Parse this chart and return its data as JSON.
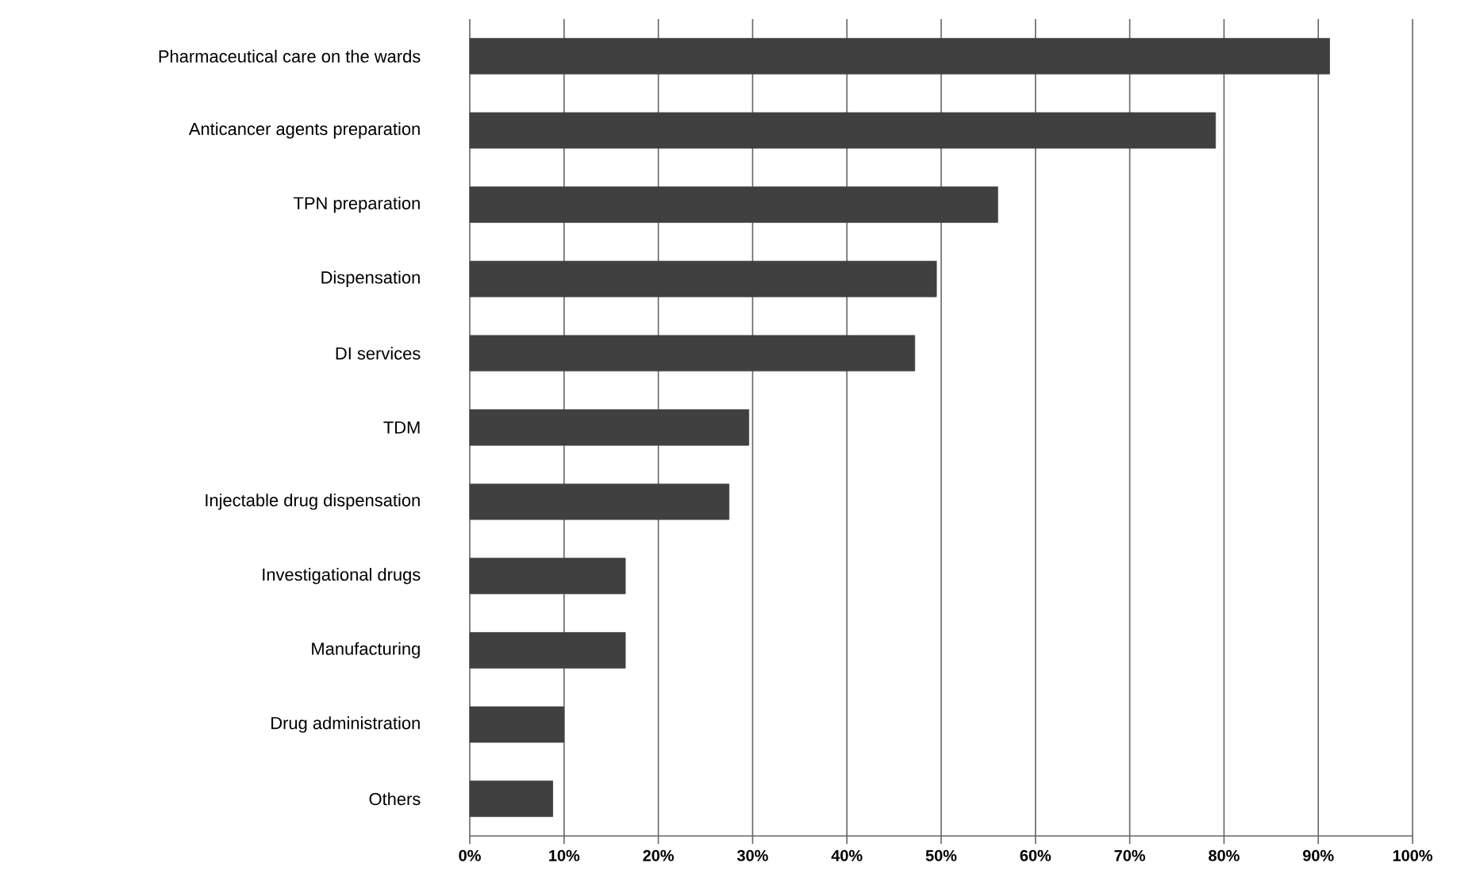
{
  "chart_data": {
    "type": "bar",
    "orientation": "horizontal",
    "categories": [
      "Pharmaceutical care on the wards",
      "Anticancer agents preparation",
      "TPN preparation",
      "Dispensation",
      "DI services",
      "TDM",
      "Injectable drug dispensation",
      "Investigational drugs",
      "Manufacturing",
      "Drug administration",
      "Others"
    ],
    "values": [
      91.2,
      79.1,
      56.0,
      49.5,
      47.2,
      29.6,
      27.5,
      16.5,
      16.5,
      10,
      8.8
    ],
    "color": "#404040",
    "xlim": [
      0,
      100
    ],
    "xticks": [
      {
        "value": 0,
        "label": "0%"
      },
      {
        "value": 10,
        "label": "10%"
      },
      {
        "value": 20,
        "label": "20%"
      },
      {
        "value": 30,
        "label": "30%"
      },
      {
        "value": 40,
        "label": "40%"
      },
      {
        "value": 50,
        "label": "50%"
      },
      {
        "value": 60,
        "label": "60%"
      },
      {
        "value": 70,
        "label": "70%"
      },
      {
        "value": 80,
        "label": "80%"
      },
      {
        "value": 90,
        "label": "90%"
      },
      {
        "value": 100,
        "label": "100%"
      }
    ],
    "grid": "x"
  }
}
